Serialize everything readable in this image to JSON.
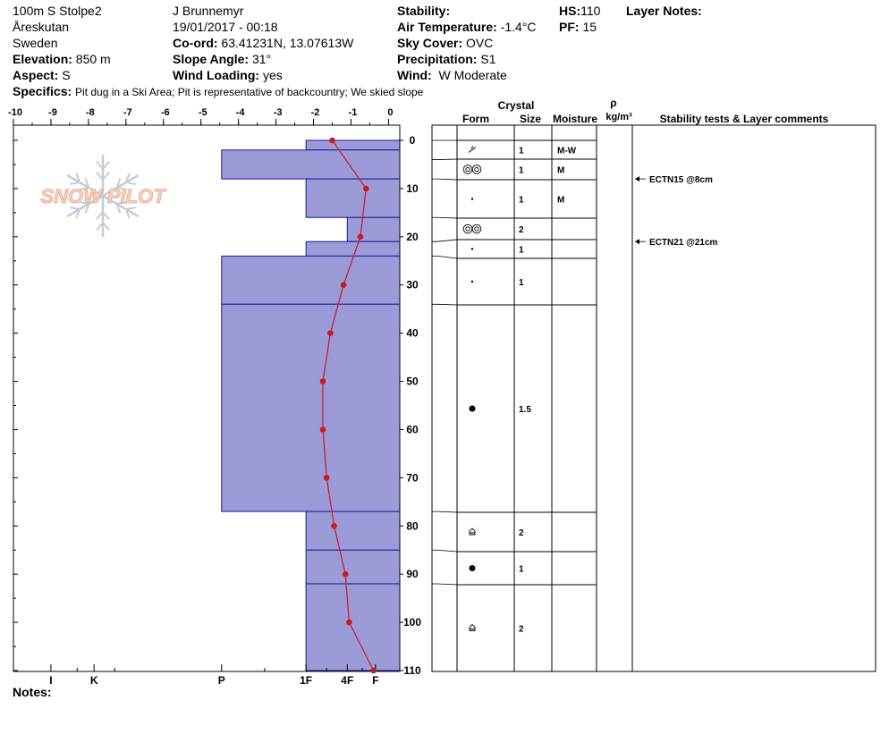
{
  "header": {
    "site": "100m S Stolpe2",
    "location": "Åreskutan",
    "country": "Sweden",
    "elevation_label": "Elevation:",
    "elevation": "850 m",
    "aspect_label": "Aspect:",
    "aspect": "S",
    "observer": "J Brunnemyr",
    "datetime": "19/01/2017 - 00:18",
    "coord_label": "Co-ord:",
    "coord": "63.41231N, 13.07613W",
    "slope_label": "Slope Angle:",
    "slope": "31°",
    "wind_loading_label": "Wind Loading:",
    "wind_loading": "yes",
    "stability_label": "Stability:",
    "stability": "",
    "air_temp_label": "Air Temperature:",
    "air_temp": "-1.4°C",
    "sky_label": "Sky Cover:",
    "sky": "OVC",
    "precip_label": "Precipitation:",
    "precip": "S1",
    "wind_label": "Wind:",
    "wind": "W Moderate",
    "hs_label": "HS:",
    "hs": "110",
    "pf_label": "PF:",
    "pf": "15",
    "layer_notes_label": "Layer Notes:",
    "specifics_label": "Specifics:",
    "specifics": "Pit dug in a Ski Area;  Pit is representative of backcountry;  We skied slope",
    "notes_label": "Notes:"
  },
  "logo": {
    "text": "SNOW PILOT"
  },
  "table_headers": {
    "crystal": "Crystal",
    "form": "Form",
    "size": "Size",
    "moisture": "Moisture",
    "rho": "ρ",
    "density_unit": "kg/m³",
    "stability": "Stability tests & Layer comments"
  },
  "chart_data": {
    "type": "snow-profile",
    "temperature_axis": {
      "ticks": [
        -10,
        -9,
        -8,
        -7,
        -6,
        -5,
        -4,
        -3,
        -2,
        -1,
        0
      ],
      "range": [
        -10,
        0.3
      ]
    },
    "depth_axis": {
      "ticks": [
        0,
        10,
        20,
        30,
        40,
        50,
        60,
        70,
        80,
        90,
        100,
        110
      ],
      "range": [
        0,
        110
      ]
    },
    "hardness_ticks": [
      {
        "label": "I",
        "pos": -9
      },
      {
        "label": "K",
        "pos": -7.85
      },
      {
        "label": "P",
        "pos": -4.45
      },
      {
        "label": "1F",
        "pos": -2.2
      },
      {
        "label": "4F",
        "pos": -1.1
      },
      {
        "label": "F",
        "pos": -0.35
      }
    ],
    "hardness_layers": [
      {
        "top": 0,
        "bottom": 2,
        "hardness": -2.2
      },
      {
        "top": 2,
        "bottom": 8,
        "hardness": -4.45
      },
      {
        "top": 8,
        "bottom": 16,
        "hardness": -2.2
      },
      {
        "top": 16,
        "bottom": 21,
        "hardness": -1.1
      },
      {
        "top": 21,
        "bottom": 24,
        "hardness": -2.2
      },
      {
        "top": 24,
        "bottom": 34,
        "hardness": -4.45
      },
      {
        "top": 34,
        "bottom": 77,
        "hardness": -4.45
      },
      {
        "top": 77,
        "bottom": 85,
        "hardness": -2.2
      },
      {
        "top": 85,
        "bottom": 92,
        "hardness": -2.2
      },
      {
        "top": 92,
        "bottom": 110,
        "hardness": -2.2
      }
    ],
    "temperature_profile": [
      {
        "depth": 0,
        "temp": -1.5
      },
      {
        "depth": 10,
        "temp": -0.6
      },
      {
        "depth": 20,
        "temp": -0.75
      },
      {
        "depth": 30,
        "temp": -1.2
      },
      {
        "depth": 40,
        "temp": -1.55
      },
      {
        "depth": 50,
        "temp": -1.75
      },
      {
        "depth": 60,
        "temp": -1.75
      },
      {
        "depth": 70,
        "temp": -1.65
      },
      {
        "depth": 80,
        "temp": -1.45
      },
      {
        "depth": 90,
        "temp": -1.15
      },
      {
        "depth": 100,
        "temp": -1.05
      },
      {
        "depth": 110,
        "temp": -0.4
      }
    ],
    "layers": [
      {
        "top": 0,
        "bottom": 4,
        "form": "decomposing",
        "size": "1",
        "moisture": "M-W"
      },
      {
        "top": 4,
        "bottom": 8,
        "form": "melt-forms",
        "size": "1",
        "moisture": "M"
      },
      {
        "top": 8,
        "bottom": 16,
        "form": "rounded-small",
        "size": "1",
        "moisture": "M"
      },
      {
        "top": 16,
        "bottom": 21,
        "form": "melt-forms",
        "size": "2",
        "moisture": ""
      },
      {
        "top": 21,
        "bottom": 24,
        "form": "rounded-small",
        "size": "1",
        "moisture": ""
      },
      {
        "top": 24,
        "bottom": 34,
        "form": "rounded-small",
        "size": "1",
        "moisture": ""
      },
      {
        "top": 34,
        "bottom": 77,
        "form": "rounded",
        "size": "1.5",
        "moisture": ""
      },
      {
        "top": 77,
        "bottom": 85,
        "form": "facet-cup",
        "size": "2",
        "moisture": ""
      },
      {
        "top": 85,
        "bottom": 92,
        "form": "rounded",
        "size": "1",
        "moisture": ""
      },
      {
        "top": 92,
        "bottom": 110,
        "form": "facet-cup",
        "size": "2",
        "moisture": ""
      }
    ],
    "stability_tests": [
      {
        "depth": 8,
        "text": "ECTN15 @8cm"
      },
      {
        "depth": 21,
        "text": "ECTN21 @21cm"
      }
    ]
  }
}
